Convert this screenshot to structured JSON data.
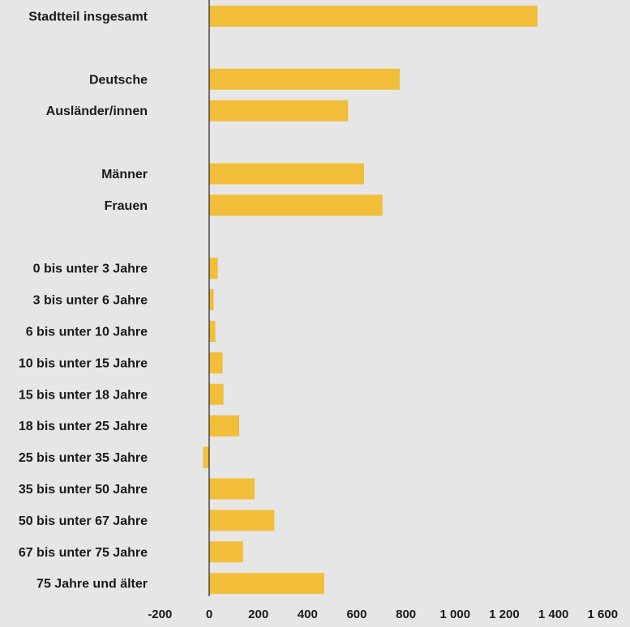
{
  "chart_data": {
    "type": "bar",
    "orientation": "horizontal",
    "title": "",
    "xlabel": "",
    "ylabel": "",
    "bar_color": "#f2be3a",
    "background_color": "#e6e6e7",
    "grid": false,
    "xlim": [
      -200,
      1600
    ],
    "xticks": [
      -200,
      0,
      200,
      400,
      600,
      800,
      1000,
      1200,
      1400,
      1600
    ],
    "xtick_labels": [
      "-200",
      "0",
      "200",
      "400",
      "600",
      "800",
      "1 000",
      "1 200",
      "1 400",
      "1 600"
    ],
    "categories": [
      "Stadtteil insgesamt",
      "Deutsche",
      "Ausländer/innen",
      "Männer",
      "Frauen",
      "0 bis unter 3 Jahre",
      "3 bis unter 6 Jahre",
      "6 bis unter 10 Jahre",
      "10 bis unter 15 Jahre",
      "15 bis unter 18 Jahre",
      "18 bis unter 25 Jahre",
      "25 bis unter 35 Jahre",
      "35 bis unter 50 Jahre",
      "50 bis unter 67 Jahre",
      "67 bis unter 75 Jahre",
      "75 Jahre und älter"
    ],
    "values": [
      1335,
      775,
      565,
      630,
      705,
      35,
      18,
      25,
      55,
      58,
      122,
      -25,
      185,
      265,
      138,
      468
    ]
  }
}
